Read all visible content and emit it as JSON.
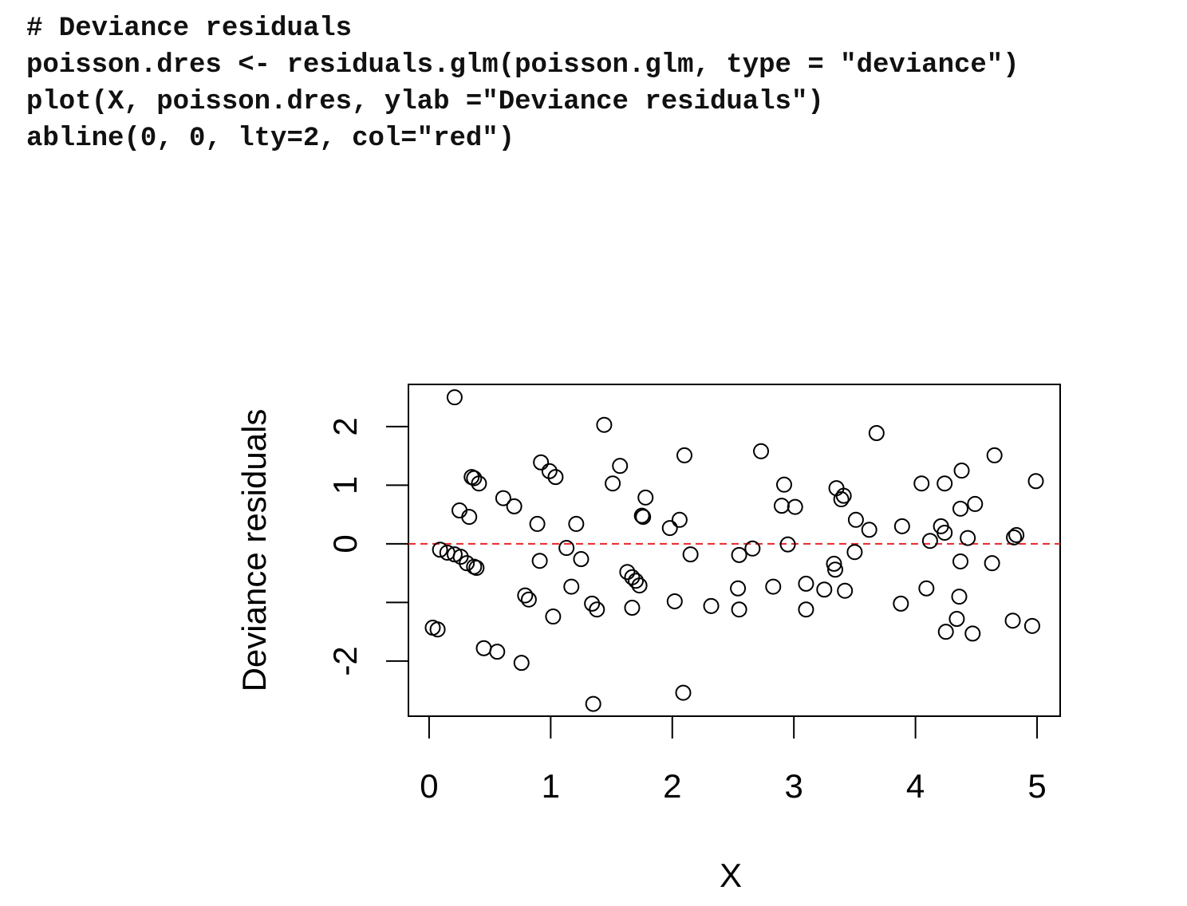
{
  "code": [
    "# Deviance residuals",
    "poisson.dres <- residuals.glm(poisson.glm, type = \"deviance\")",
    "plot(X, poisson.dres, ylab =\"Deviance residuals\")",
    "abline(0, 0, lty=2, col=\"red\")"
  ],
  "chart_data": {
    "type": "scatter",
    "xlabel": "X",
    "ylabel": "Deviance residuals",
    "xlim": [
      -0.17,
      5.19
    ],
    "ylim": [
      -2.94,
      2.72
    ],
    "xticks": [
      0,
      1,
      2,
      3,
      4,
      5
    ],
    "yticks": [
      -2,
      {
        "value": -1,
        "label": null
      },
      0,
      1,
      2
    ],
    "reference_line": {
      "y": 0,
      "color": "#e8262b",
      "dashed": true
    },
    "color": "#000000",
    "x": [
      0.21,
      0.03,
      0.07,
      0.09,
      0.15,
      0.21,
      0.26,
      0.31,
      0.37,
      0.39,
      0.25,
      0.33,
      0.35,
      0.37,
      0.41,
      0.45,
      0.56,
      0.61,
      0.7,
      0.76,
      0.79,
      0.82,
      0.89,
      0.91,
      0.92,
      0.99,
      1.04,
      1.02,
      1.13,
      1.17,
      1.21,
      1.25,
      1.34,
      1.38,
      1.35,
      1.44,
      1.51,
      1.57,
      1.63,
      1.67,
      1.7,
      1.73,
      1.67,
      1.75,
      1.76,
      1.78,
      1.98,
      2.02,
      2.06,
      2.1,
      2.09,
      2.15,
      2.32,
      2.54,
      2.55,
      2.55,
      2.66,
      2.73,
      2.83,
      2.9,
      2.92,
      3.01,
      2.95,
      3.1,
      3.1,
      3.25,
      3.33,
      3.34,
      3.35,
      3.39,
      3.41,
      3.42,
      3.5,
      3.51,
      3.62,
      3.68,
      3.88,
      3.89,
      4.05,
      4.09,
      4.12,
      4.21,
      4.24,
      4.24,
      4.25,
      4.34,
      4.36,
      4.37,
      4.37,
      4.38,
      4.43,
      4.47,
      4.49,
      4.63,
      4.65,
      4.8,
      4.81,
      4.83,
      4.96,
      4.99
    ],
    "y": [
      2.5,
      -1.43,
      -1.46,
      -0.1,
      -0.15,
      -0.18,
      -0.22,
      -0.33,
      -0.39,
      -0.41,
      0.57,
      0.46,
      1.14,
      1.12,
      1.03,
      -1.78,
      -1.84,
      0.78,
      0.64,
      -2.03,
      -0.88,
      -0.95,
      0.34,
      -0.29,
      1.39,
      1.24,
      1.14,
      -1.24,
      -0.07,
      -0.73,
      0.34,
      -0.26,
      -1.02,
      -1.12,
      -2.73,
      2.03,
      1.03,
      1.33,
      -0.48,
      -0.57,
      -0.63,
      -0.71,
      -1.09,
      0.48,
      0.46,
      0.79,
      0.27,
      -0.98,
      0.41,
      1.51,
      -2.54,
      -0.18,
      -1.06,
      -0.76,
      -1.12,
      -0.19,
      -0.08,
      1.58,
      -0.73,
      0.65,
      1.01,
      0.63,
      -0.01,
      -0.68,
      -1.12,
      -0.78,
      -0.34,
      -0.44,
      0.95,
      0.76,
      0.82,
      -0.8,
      -0.14,
      0.41,
      0.24,
      1.89,
      -1.02,
      0.3,
      1.03,
      -0.76,
      0.05,
      0.3,
      0.19,
      1.03,
      -1.5,
      -1.28,
      -0.9,
      -0.3,
      0.6,
      1.25,
      0.1,
      -1.53,
      0.68,
      -0.33,
      1.51,
      -1.31,
      0.11,
      0.15,
      -1.4,
      1.07
    ]
  }
}
